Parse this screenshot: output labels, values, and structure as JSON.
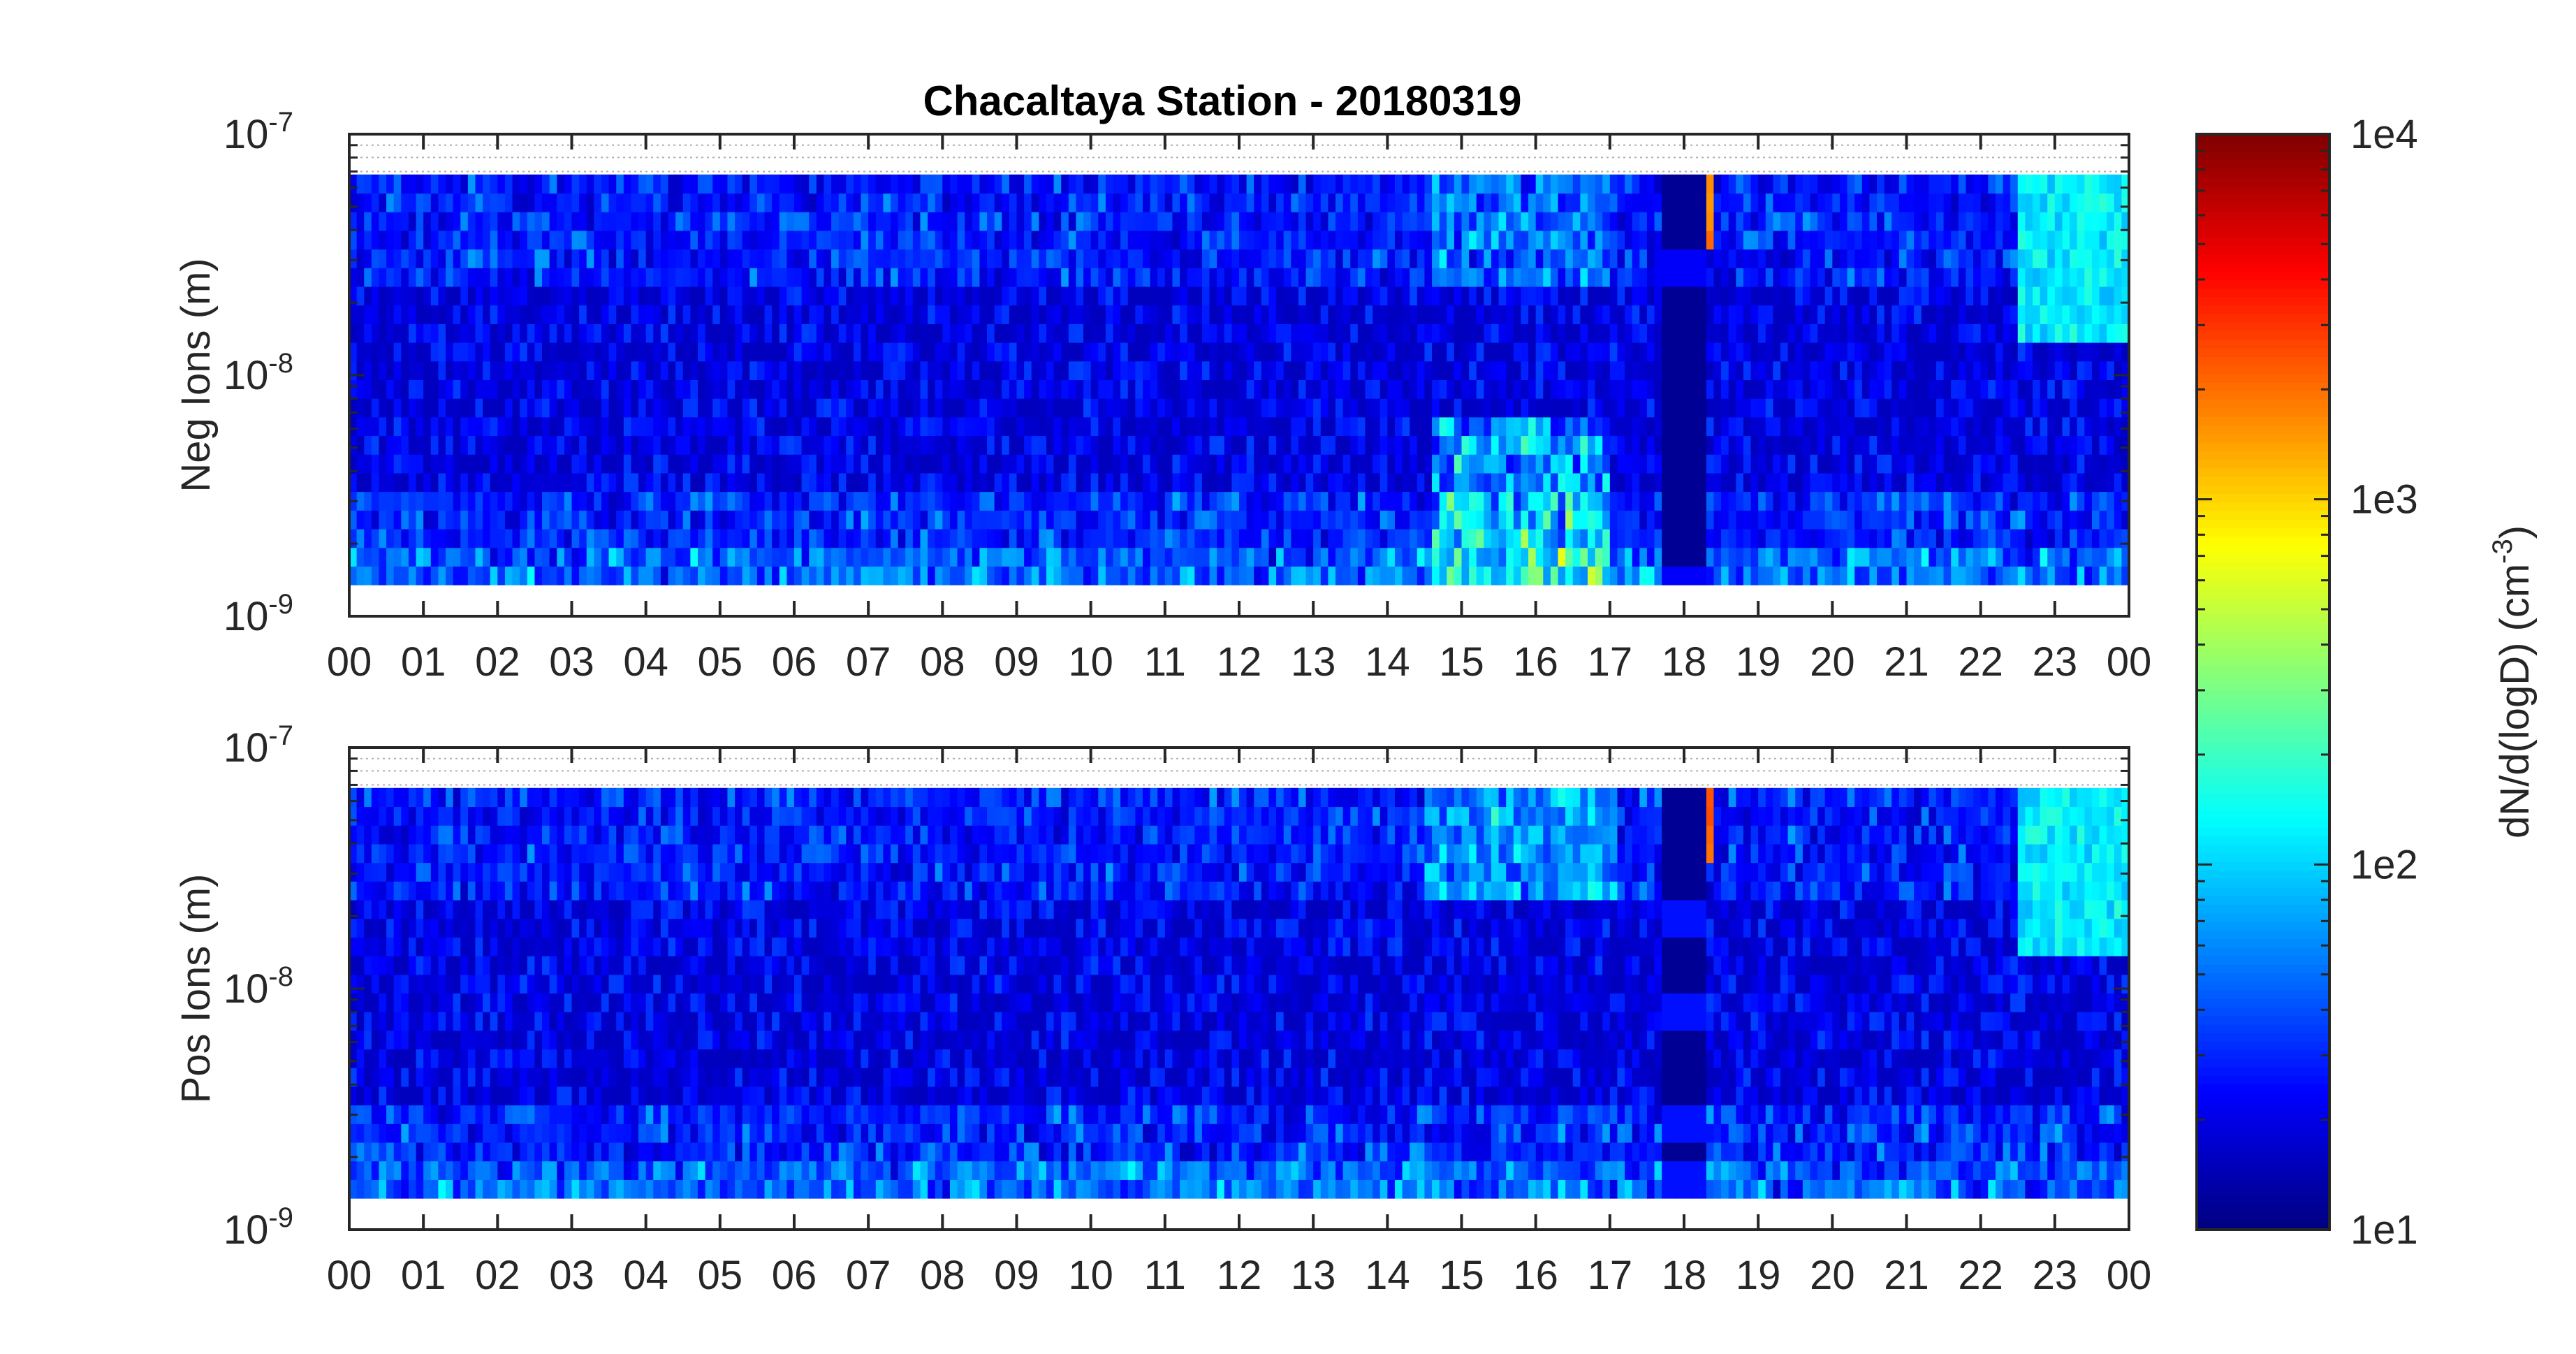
{
  "chart_data": [
    {
      "type": "heatmap",
      "title": "Chacaltaya Station - 20180319",
      "ylabel": "Neg Ions (m)",
      "xlabel": "",
      "x_tick_labels": [
        "00",
        "01",
        "02",
        "03",
        "04",
        "05",
        "06",
        "07",
        "08",
        "09",
        "10",
        "11",
        "12",
        "13",
        "14",
        "15",
        "16",
        "17",
        "18",
        "19",
        "20",
        "21",
        "22",
        "23",
        "00"
      ],
      "x_range_hours": [
        0,
        24
      ],
      "y_scale": "log",
      "y_range": [
        1e-09,
        1e-07
      ],
      "y_tick_labels": [
        {
          "base": "10",
          "exp": "-9"
        },
        {
          "base": "10",
          "exp": "-8"
        },
        {
          "base": "10",
          "exp": "-7"
        }
      ],
      "data_y_range": [
        1.35e-09,
        6.8e-08
      ],
      "background_level": "low (~1e1 to 3e1)",
      "features": [
        {
          "hours": [
            14.6,
            17.0
          ],
          "diameter": "1.5e-9 to 6e-9 m",
          "level": "up to ~1e3"
        },
        {
          "hours": [
            17.65,
            18.3
          ],
          "diameter": "all",
          "level": "~1e1 (data gap / minimum)"
        },
        {
          "hours": [
            18.3,
            18.45
          ],
          "diameter": "4e-8 to 6.8e-8 m",
          "level": "~3e3"
        },
        {
          "hours": [
            22.5,
            24.0
          ],
          "diameter": "1.2e-8 to 6.8e-8 m",
          "level": "~1e2 to 3e2"
        }
      ]
    },
    {
      "type": "heatmap",
      "title": "",
      "ylabel": "Pos Ions (m)",
      "xlabel": "",
      "x_tick_labels": [
        "00",
        "01",
        "02",
        "03",
        "04",
        "05",
        "06",
        "07",
        "08",
        "09",
        "10",
        "11",
        "12",
        "13",
        "14",
        "15",
        "16",
        "17",
        "18",
        "19",
        "20",
        "21",
        "22",
        "23",
        "00"
      ],
      "x_range_hours": [
        0,
        24
      ],
      "y_scale": "log",
      "y_range": [
        1e-09,
        1e-07
      ],
      "y_tick_labels": [
        {
          "base": "10",
          "exp": "-9"
        },
        {
          "base": "10",
          "exp": "-8"
        },
        {
          "base": "10",
          "exp": "-7"
        }
      ],
      "data_y_range": [
        1.35e-09,
        6.8e-08
      ],
      "background_level": "low (~1e1 to 3e1)",
      "features": [
        {
          "hours": [
            14.5,
            17.1
          ],
          "diameter": "2.5e-8 to 6.8e-8 m",
          "level": "~1e2"
        },
        {
          "hours": [
            17.65,
            18.3
          ],
          "diameter": "all",
          "level": "~1e1 with bands ~3e1"
        },
        {
          "hours": [
            18.3,
            18.45
          ],
          "diameter": "4e-8 to 6.8e-8 m",
          "level": "~3e3"
        },
        {
          "hours": [
            22.5,
            24.0
          ],
          "diameter": "1.2e-8 to 6.8e-8 m",
          "level": "~1e2 to 3e2"
        }
      ]
    }
  ],
  "colorbar": {
    "label_main": "dN/d(logD) (cm",
    "label_exp": "-3",
    "label_close": ")",
    "scale": "log",
    "range": [
      10,
      10000
    ],
    "tick_labels": [
      "1e1",
      "1e2",
      "1e3",
      "1e4"
    ],
    "colormap": "jet"
  }
}
